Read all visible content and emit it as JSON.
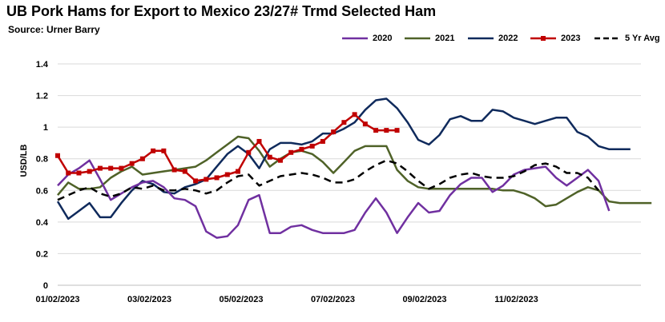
{
  "title": "UB Pork Hams for Export to Mexico 23/27# Trmd Selected Ham",
  "subtitle": "Source: Urner Barry",
  "chart_data": {
    "type": "line",
    "title": "UB Pork Hams for Export to Mexico 23/27# Trmd Selected Ham",
    "subtitle": "Source: Urner Barry",
    "ylabel": "USD/LB",
    "xlabel": "",
    "ylim": [
      0,
      1.4
    ],
    "yticks": [
      "0",
      "0.2",
      "0.4",
      "0.6",
      "0.8",
      "1",
      "1.2",
      "1.4"
    ],
    "xticks": [
      "01/02/2023",
      "03/02/2023",
      "05/02/2023",
      "07/02/2023",
      "09/02/2023",
      "11/02/2023"
    ],
    "grid": true,
    "legend_position": "top-right",
    "x_unit": "weeks",
    "series": [
      {
        "name": "2020",
        "color": "#7030a0",
        "dash": "",
        "markers": false,
        "values": [
          0.63,
          0.7,
          0.74,
          0.79,
          0.67,
          0.54,
          0.58,
          0.62,
          0.65,
          0.66,
          0.62,
          0.55,
          0.54,
          0.5,
          0.34,
          0.3,
          0.31,
          0.38,
          0.54,
          0.57,
          0.33,
          0.33,
          0.37,
          0.38,
          0.35,
          0.33,
          0.33,
          0.33,
          0.35,
          0.46,
          0.55,
          0.46,
          0.33,
          0.43,
          0.52,
          0.46,
          0.47,
          0.57,
          0.64,
          0.68,
          0.68,
          0.59,
          0.63,
          0.7,
          0.73,
          0.74,
          0.75,
          0.68,
          0.63,
          0.68,
          0.73,
          0.66,
          0.47
        ]
      },
      {
        "name": "2021",
        "color": "#4f6228",
        "dash": "",
        "markers": false,
        "values": [
          0.57,
          0.65,
          0.61,
          0.61,
          0.62,
          0.68,
          0.72,
          0.75,
          0.7,
          0.71,
          0.72,
          0.73,
          0.74,
          0.75,
          0.79,
          0.84,
          0.89,
          0.94,
          0.93,
          0.85,
          0.75,
          0.8,
          0.84,
          0.85,
          0.83,
          0.78,
          0.71,
          0.78,
          0.85,
          0.88,
          0.88,
          0.88,
          0.73,
          0.66,
          0.62,
          0.61,
          0.61,
          0.61,
          0.61,
          0.61,
          0.61,
          0.61,
          0.6,
          0.6,
          0.58,
          0.55,
          0.5,
          0.51,
          0.55,
          0.59,
          0.62,
          0.6,
          0.53,
          0.52,
          0.52,
          0.52,
          0.52
        ]
      },
      {
        "name": "2022",
        "color": "#0f2a5c",
        "dash": "",
        "markers": false,
        "values": [
          0.53,
          0.42,
          0.47,
          0.52,
          0.43,
          0.43,
          0.52,
          0.6,
          0.66,
          0.64,
          0.59,
          0.58,
          0.62,
          0.64,
          0.67,
          0.75,
          0.83,
          0.88,
          0.83,
          0.74,
          0.86,
          0.9,
          0.9,
          0.89,
          0.91,
          0.96,
          0.96,
          0.99,
          1.03,
          1.11,
          1.17,
          1.18,
          1.12,
          1.03,
          0.92,
          0.89,
          0.95,
          1.05,
          1.07,
          1.04,
          1.04,
          1.11,
          1.1,
          1.06,
          1.04,
          1.02,
          1.04,
          1.06,
          1.06,
          0.97,
          0.94,
          0.88,
          0.86,
          0.86,
          0.86
        ]
      },
      {
        "name": "2023",
        "color": "#c00000",
        "dash": "",
        "markers": true,
        "values": [
          0.82,
          0.71,
          0.71,
          0.72,
          0.74,
          0.74,
          0.74,
          0.77,
          0.8,
          0.85,
          0.85,
          0.73,
          0.72,
          0.66,
          0.67,
          0.68,
          0.7,
          0.72,
          0.84,
          0.91,
          0.81,
          0.79,
          0.84,
          0.86,
          0.88,
          0.91,
          0.97,
          1.03,
          1.08,
          1.02,
          0.98,
          0.98,
          0.98
        ]
      },
      {
        "name": "5 Yr Avg",
        "color": "#000000",
        "dash": "9,6",
        "markers": false,
        "values": [
          0.54,
          0.57,
          0.6,
          0.62,
          0.58,
          0.56,
          0.58,
          0.62,
          0.61,
          0.63,
          0.6,
          0.6,
          0.61,
          0.6,
          0.58,
          0.6,
          0.65,
          0.69,
          0.7,
          0.63,
          0.66,
          0.69,
          0.7,
          0.71,
          0.7,
          0.68,
          0.65,
          0.65,
          0.67,
          0.72,
          0.76,
          0.79,
          0.77,
          0.72,
          0.66,
          0.61,
          0.64,
          0.68,
          0.7,
          0.71,
          0.69,
          0.68,
          0.68,
          0.69,
          0.72,
          0.76,
          0.77,
          0.75,
          0.71,
          0.71,
          0.68,
          0.6
        ]
      }
    ]
  }
}
